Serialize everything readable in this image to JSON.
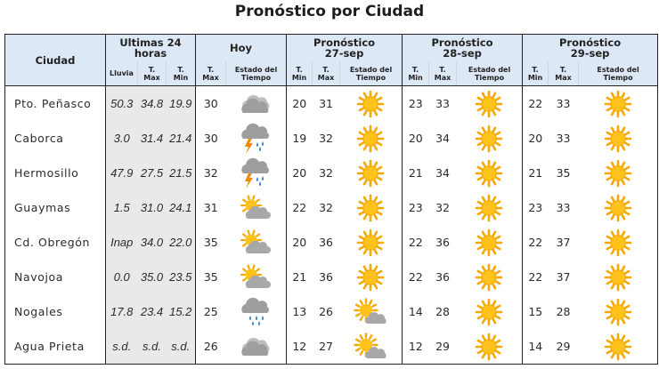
{
  "title": "Pronóstico por Ciudad",
  "headers": {
    "ciudad": "Ciudad",
    "ultimas": "Ultimas 24 horas",
    "hoy": "Hoy",
    "pron1_line1": "Pronóstico",
    "pron1_line2": "27-sep",
    "pron2_line1": "Pronóstico",
    "pron2_line2": "28-sep",
    "pron3_line1": "Pronóstico",
    "pron3_line2": "29-sep",
    "lluvia": "Lluvia",
    "tmax_1": "T.",
    "tmax_2": "Max",
    "tmin_1": "T.",
    "tmin_2": "Min",
    "estado_1": "Estado del",
    "estado_2": "Tiempo"
  },
  "rows": [
    {
      "city": "Pto. Peñasco",
      "lluvia": "50.3",
      "tmax_obs": "34.8",
      "tmin_obs": "19.9",
      "hoy_tmax": "30",
      "hoy_icon": "cloudy-icon",
      "d1_tmin": "20",
      "d1_tmax": "31",
      "d1_icon": "sun-icon",
      "d2_tmin": "23",
      "d2_tmax": "33",
      "d2_icon": "sun-icon",
      "d3_tmin": "22",
      "d3_tmax": "33",
      "d3_icon": "sun-icon"
    },
    {
      "city": "Caborca",
      "lluvia": "3.0",
      "tmax_obs": "31.4",
      "tmin_obs": "21.4",
      "hoy_tmax": "30",
      "hoy_icon": "storm-icon",
      "d1_tmin": "19",
      "d1_tmax": "32",
      "d1_icon": "sun-icon",
      "d2_tmin": "20",
      "d2_tmax": "34",
      "d2_icon": "sun-icon",
      "d3_tmin": "20",
      "d3_tmax": "33",
      "d3_icon": "sun-icon"
    },
    {
      "city": "Hermosillo",
      "lluvia": "47.9",
      "tmax_obs": "27.5",
      "tmin_obs": "21.5",
      "hoy_tmax": "32",
      "hoy_icon": "storm-icon",
      "d1_tmin": "20",
      "d1_tmax": "32",
      "d1_icon": "sun-icon",
      "d2_tmin": "21",
      "d2_tmax": "34",
      "d2_icon": "sun-icon",
      "d3_tmin": "21",
      "d3_tmax": "35",
      "d3_icon": "sun-icon"
    },
    {
      "city": "Guaymas",
      "lluvia": "1.5",
      "tmax_obs": "31.0",
      "tmin_obs": "24.1",
      "hoy_tmax": "31",
      "hoy_icon": "partly-cloudy-icon",
      "d1_tmin": "22",
      "d1_tmax": "32",
      "d1_icon": "sun-icon",
      "d2_tmin": "23",
      "d2_tmax": "32",
      "d2_icon": "sun-icon",
      "d3_tmin": "23",
      "d3_tmax": "33",
      "d3_icon": "sun-icon"
    },
    {
      "city": "Cd. Obregón",
      "lluvia": "Inap",
      "tmax_obs": "34.0",
      "tmin_obs": "22.0",
      "hoy_tmax": "35",
      "hoy_icon": "partly-cloudy-icon",
      "d1_tmin": "20",
      "d1_tmax": "36",
      "d1_icon": "sun-icon",
      "d2_tmin": "22",
      "d2_tmax": "36",
      "d2_icon": "sun-icon",
      "d3_tmin": "22",
      "d3_tmax": "37",
      "d3_icon": "sun-icon"
    },
    {
      "city": "Navojoa",
      "lluvia": "0.0",
      "tmax_obs": "35.0",
      "tmin_obs": "23.5",
      "hoy_tmax": "35",
      "hoy_icon": "partly-cloudy-icon",
      "d1_tmin": "21",
      "d1_tmax": "36",
      "d1_icon": "sun-icon",
      "d2_tmin": "22",
      "d2_tmax": "36",
      "d2_icon": "sun-icon",
      "d3_tmin": "22",
      "d3_tmax": "37",
      "d3_icon": "sun-icon"
    },
    {
      "city": "Nogales",
      "lluvia": "17.8",
      "tmax_obs": "23.4",
      "tmin_obs": "15.2",
      "hoy_tmax": "25",
      "hoy_icon": "rain-icon",
      "d1_tmin": "13",
      "d1_tmax": "26",
      "d1_icon": "sun-cloud-icon",
      "d2_tmin": "14",
      "d2_tmax": "28",
      "d2_icon": "sun-icon",
      "d3_tmin": "15",
      "d3_tmax": "28",
      "d3_icon": "sun-icon"
    },
    {
      "city": "Agua Prieta",
      "lluvia": "s.d.",
      "tmax_obs": "s.d.",
      "tmin_obs": "s.d.",
      "hoy_tmax": "26",
      "hoy_icon": "cloudy-icon",
      "d1_tmin": "12",
      "d1_tmax": "27",
      "d1_icon": "sun-cloud-icon",
      "d2_tmin": "12",
      "d2_tmax": "29",
      "d2_icon": "sun-icon",
      "d3_tmin": "14",
      "d3_tmax": "29",
      "d3_icon": "sun-icon"
    }
  ],
  "colors": {
    "header_bg": "#dde8f6",
    "observed_bg": "#e9e9e9",
    "sun": "#f5b400",
    "cloud": "#a4a4a4",
    "rain": "#2d7fd3",
    "bolt": "#f08a00"
  }
}
